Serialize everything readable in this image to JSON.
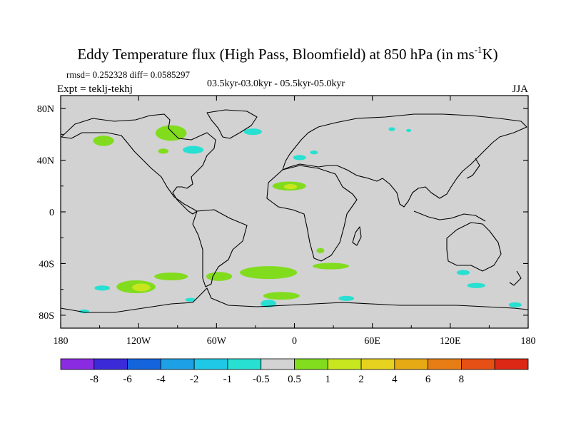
{
  "chart_data": {
    "type": "heatmap",
    "title": "Eddy Temperature flux (High Pass, Bloomfield) at 850 hPa (in ms",
    "title_superscript": "-1",
    "title_suffix": "K)",
    "stats_text": "rmsd= 0.252328 diff= 0.0585297",
    "experiment_text": "Expt = teklj-tekhj",
    "period_text": "03.5kyr-03.0kyr - 05.5kyr-05.0kyr",
    "season_text": "JJA",
    "xlim": [
      -180,
      180
    ],
    "ylim": [
      -90,
      90
    ],
    "x_ticks": [
      {
        "value": -180,
        "label": "180"
      },
      {
        "value": -120,
        "label": "120W"
      },
      {
        "value": -60,
        "label": "60W"
      },
      {
        "value": 0,
        "label": "0"
      },
      {
        "value": 60,
        "label": "60E"
      },
      {
        "value": 120,
        "label": "120E"
      },
      {
        "value": 180,
        "label": "180"
      }
    ],
    "y_ticks": [
      {
        "value": 80,
        "label": "80N"
      },
      {
        "value": 40,
        "label": "40N"
      },
      {
        "value": 0,
        "label": "0"
      },
      {
        "value": -40,
        "label": "40S"
      },
      {
        "value": -80,
        "label": "80S"
      }
    ],
    "colorbar": {
      "colors": [
        "#8a2be2",
        "#3a2ad8",
        "#1464dc",
        "#1ea0e6",
        "#1ec8e6",
        "#28e0d2",
        "#d2d2d2",
        "#82dc1e",
        "#c8e61e",
        "#e6d21e",
        "#e6aa14",
        "#e67d14",
        "#e65014",
        "#dc2814"
      ],
      "labels": [
        "-8",
        "-6",
        "-4",
        "-2",
        "-1",
        "-0.5",
        "0.5",
        "1",
        "2",
        "4",
        "6",
        "8"
      ]
    },
    "anomaly_regions": [
      {
        "name": "N Atlantic positive (Hudson Bay)",
        "cells": [
          {
            "lon": -95,
            "lat": 61,
            "rx": 12,
            "ry": 6,
            "color": "#82dc1e"
          }
        ]
      },
      {
        "name": "NE Pacific positive",
        "cells": [
          {
            "lon": -147,
            "lat": 55,
            "rx": 8,
            "ry": 4,
            "color": "#82dc1e"
          }
        ]
      },
      {
        "name": "N Atlantic negative",
        "cells": [
          {
            "lon": -78,
            "lat": 48,
            "rx": 8,
            "ry": 3,
            "color": "#28e0d2"
          },
          {
            "lon": -32,
            "lat": 62,
            "rx": 7,
            "ry": 2.5,
            "color": "#28e0d2"
          },
          {
            "lon": -101,
            "lat": 47,
            "rx": 4,
            "ry": 2,
            "color": "#82dc1e"
          }
        ]
      },
      {
        "name": "Mediterranean negative",
        "cells": [
          {
            "lon": 4,
            "lat": 42,
            "rx": 5,
            "ry": 2,
            "color": "#28e0d2"
          },
          {
            "lon": 15,
            "lat": 46,
            "rx": 3,
            "ry": 1.5,
            "color": "#28e0d2"
          }
        ]
      },
      {
        "name": "Sahara positive",
        "cells": [
          {
            "lon": -4,
            "lat": 20,
            "rx": 13,
            "ry": 3.5,
            "color": "#82dc1e"
          },
          {
            "lon": -3,
            "lat": 19.5,
            "rx": 5,
            "ry": 2,
            "color": "#c8e61e"
          }
        ]
      },
      {
        "name": "Siberia negative",
        "cells": [
          {
            "lon": 75,
            "lat": 64,
            "rx": 2.5,
            "ry": 1.5,
            "color": "#28e0d2"
          },
          {
            "lon": 88,
            "lat": 63,
            "rx": 2,
            "ry": 1.2,
            "color": "#28e0d2"
          }
        ]
      },
      {
        "name": "S Africa positive",
        "cells": [
          {
            "lon": 20,
            "lat": -30,
            "rx": 3,
            "ry": 2,
            "color": "#82dc1e"
          }
        ]
      },
      {
        "name": "Southern Ocean Pacific positive",
        "cells": [
          {
            "lon": -122,
            "lat": -58,
            "rx": 15,
            "ry": 5,
            "color": "#82dc1e"
          },
          {
            "lon": -118,
            "lat": -58.5,
            "rx": 7,
            "ry": 3,
            "color": "#c8e61e"
          },
          {
            "lon": -95,
            "lat": -50,
            "rx": 13,
            "ry": 3,
            "color": "#82dc1e"
          },
          {
            "lon": -20,
            "lat": -47,
            "rx": 22,
            "ry": 5,
            "color": "#82dc1e"
          },
          {
            "lon": 28,
            "lat": -42,
            "rx": 14,
            "ry": 2.5,
            "color": "#82dc1e"
          },
          {
            "lon": -10,
            "lat": -65,
            "rx": 14,
            "ry": 3,
            "color": "#82dc1e"
          },
          {
            "lon": -58,
            "lat": -50,
            "rx": 10,
            "ry": 3.5,
            "color": "#82dc1e"
          }
        ]
      },
      {
        "name": "Southern Ocean negative",
        "cells": [
          {
            "lon": -148,
            "lat": -59,
            "rx": 6,
            "ry": 2,
            "color": "#28e0d2"
          },
          {
            "lon": -162,
            "lat": -77,
            "rx": 4,
            "ry": 1.5,
            "color": "#28e0d2"
          },
          {
            "lon": -80,
            "lat": -68,
            "rx": 4,
            "ry": 1.5,
            "color": "#28e0d2"
          },
          {
            "lon": -20,
            "lat": -71,
            "rx": 6,
            "ry": 3,
            "color": "#28e0d2"
          },
          {
            "lon": 40,
            "lat": -67,
            "rx": 6,
            "ry": 2,
            "color": "#28e0d2"
          },
          {
            "lon": 140,
            "lat": -57,
            "rx": 7,
            "ry": 2,
            "color": "#28e0d2"
          },
          {
            "lon": 130,
            "lat": -47,
            "rx": 5,
            "ry": 2,
            "color": "#28e0d2"
          },
          {
            "lon": 170,
            "lat": -72,
            "rx": 5,
            "ry": 2,
            "color": "#28e0d2"
          }
        ]
      }
    ]
  }
}
